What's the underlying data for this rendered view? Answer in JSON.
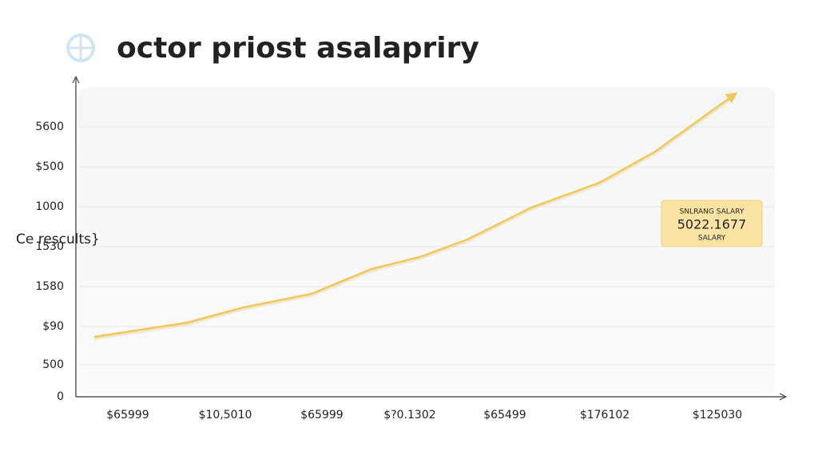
{
  "chart_data": {
    "type": "line",
    "title": "octor priost asalapriry",
    "ylabel": "Ce rescults}",
    "x": [
      23,
      140,
      210,
      295,
      370,
      430,
      490,
      570,
      655,
      725,
      825
    ],
    "values": [
      75,
      93,
      112,
      129,
      160,
      175,
      197,
      237,
      268,
      307,
      379
    ],
    "color": "#f0c85a",
    "xlim": [
      0,
      890
    ],
    "xticks": [
      {
        "value": 65,
        "label": "$65999"
      },
      {
        "value": 187,
        "label": "$10,5010"
      },
      {
        "value": 308,
        "label": "$65999"
      },
      {
        "value": 418,
        "label": "$?0.1302"
      },
      {
        "value": 537,
        "label": "$65499"
      },
      {
        "value": 662,
        "label": "$176102"
      },
      {
        "value": 803,
        "label": "$125030"
      }
    ],
    "ylim": [
      0,
      385
    ],
    "yticks": [
      0,
      {
        "value": 40,
        "label": "500"
      },
      {
        "value": 88,
        "label": "$90"
      },
      {
        "value": 138,
        "label": "1580"
      },
      {
        "value": 188,
        "label": "1530"
      },
      {
        "value": 238,
        "label": "1000"
      },
      {
        "value": 288,
        "label": "$500"
      },
      {
        "value": 338,
        "label": "5600"
      }
    ],
    "grid": true,
    "annotation": {
      "title": "SNLRANG SALARY",
      "value": "5022.1677",
      "subtitle": "SALARY"
    }
  }
}
